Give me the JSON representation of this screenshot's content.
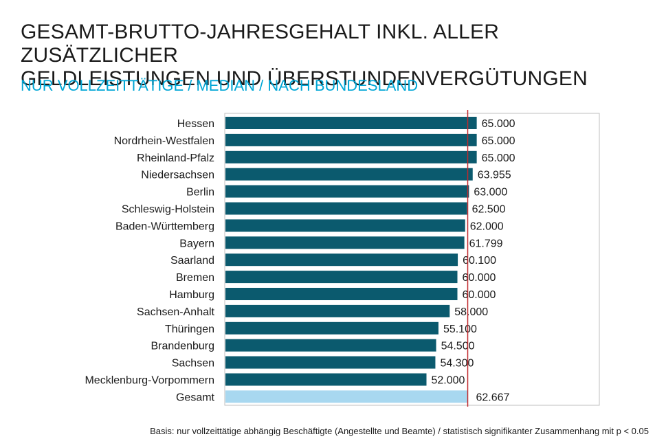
{
  "title_line1": "GESAMT-BRUTTO-JAHRESGEHALT INKL. ALLER ZUSÄTZLICHER",
  "title_line2": "GELDLEISTUNGEN UND ÜBERSTUNDENVERGÜTUNGEN",
  "subtitle": "NUR VOLLZEITTÄTIGE / MEDIAN / NACH BUNDESLAND",
  "footnote": "Basis: nur vollzeittätige abhängig Beschäftigte (Angestellte und Beamte) / statistisch signifikanter Zusammenhang mit p < 0.05",
  "colors": {
    "bar": "#0b5a6e",
    "total_bar": "#a8d8f0",
    "reference_line": "#c0282d",
    "frame": "#bfbfbf"
  },
  "chart_data": {
    "type": "bar",
    "orientation": "horizontal",
    "categories": [
      "Hessen",
      "Nordrhein-Westfalen",
      "Rheinland-Pfalz",
      "Niedersachsen",
      "Berlin",
      "Schleswig-Holstein",
      "Baden-Württemberg",
      "Bayern",
      "Saarland",
      "Bremen",
      "Hamburg",
      "Sachsen-Anhalt",
      "Thüringen",
      "Brandenburg",
      "Sachsen",
      "Mecklenburg-Vorpommern",
      "Gesamt"
    ],
    "values": [
      65000,
      65000,
      65000,
      63955,
      63000,
      62500,
      62000,
      61799,
      60100,
      60000,
      60000,
      58000,
      55100,
      54500,
      54300,
      52000,
      62667
    ],
    "value_labels": [
      "65.000",
      "65.000",
      "65.000",
      "63.955",
      "63.000",
      "62.500",
      "62.000",
      "61.799",
      "60.100",
      "60.000",
      "60.000",
      "58.000",
      "55.100",
      "54.500",
      "54.300",
      "52.000",
      "62.667"
    ],
    "highlight_category": "Gesamt",
    "reference_line": 62667,
    "xlim": [
      0,
      80000
    ],
    "grid": false
  }
}
